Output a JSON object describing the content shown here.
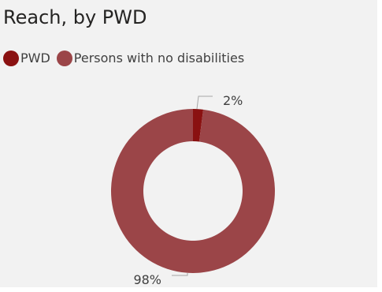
{
  "chart_data": {
    "type": "pie",
    "variant": "donut",
    "title": "Reach, by PWD",
    "legend_position": "top-left",
    "categories": [
      "PWD",
      "Persons with no disabilities"
    ],
    "values": [
      2,
      98
    ],
    "labels": [
      "2%",
      "98%"
    ],
    "colors": [
      "#8a1111",
      "#9b4548"
    ],
    "background": "#f2f2f2"
  }
}
